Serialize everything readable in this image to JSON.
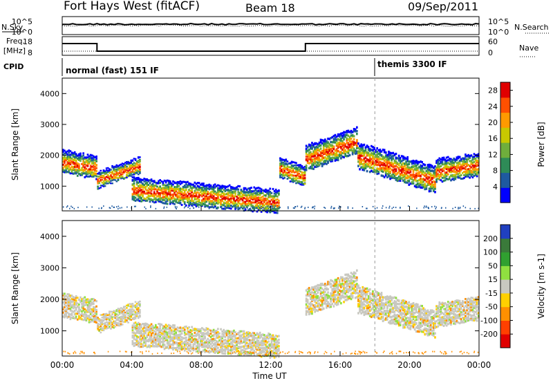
{
  "header": {
    "station": "Fort Hays West (fitACF)",
    "beam": "Beam 18",
    "date": "09/Sep/2011"
  },
  "top_panels": {
    "nsky_label": "N.Sky",
    "nsky_ticks": [
      "10^5",
      "10^0"
    ],
    "nsearch_label": "N.Search",
    "nsearch_ticks": [
      "10^5",
      "10^0"
    ],
    "freq_label_line1": "Freq.",
    "freq_label_line2": "[MHz]",
    "freq_ticks": [
      "18",
      "8"
    ],
    "nave_label": "Nave",
    "nave_ticks": [
      "60",
      "0"
    ],
    "cpid_label": "CPID",
    "cpid_modes": [
      {
        "label": "normal (fast) 151 IF",
        "start": "00:00"
      },
      {
        "label": "themis 3300 IF",
        "start": "18:00"
      }
    ],
    "freq_steps": [
      {
        "from": "00:00",
        "to": "02:00",
        "value": "high"
      },
      {
        "from": "02:00",
        "to": "14:00",
        "value": "low"
      },
      {
        "from": "14:00",
        "to": "24:00",
        "value": "high"
      }
    ]
  },
  "chart_data": [
    {
      "type": "heatmap",
      "title": "",
      "ylabel": "Slant Range [km]",
      "ylim": [
        200,
        4500
      ],
      "yticks": [
        "1000",
        "2000",
        "3000",
        "4000"
      ],
      "xlim": [
        "00:00",
        "24:00"
      ],
      "colorbar": {
        "label": "Power [dB]",
        "ticks": [
          "4",
          "8",
          "12",
          "16",
          "20",
          "24",
          "28"
        ],
        "range": [
          0,
          30
        ],
        "colors": [
          "#0000ff",
          "#1e5aa0",
          "#2e8b57",
          "#6fae3c",
          "#c8c800",
          "#ff9a00",
          "#ff5000",
          "#e00000"
        ]
      },
      "scatter_bands": [
        {
          "from_hour": 0.0,
          "to_hour": 2.0,
          "range_start_km": 1800,
          "range_end_km": 1600,
          "thickness_km": 700
        },
        {
          "from_hour": 2.0,
          "to_hour": 4.5,
          "range_start_km": 1200,
          "range_end_km": 1700,
          "thickness_km": 500
        },
        {
          "from_hour": 4.0,
          "to_hour": 12.5,
          "range_start_km": 900,
          "range_end_km": 500,
          "thickness_km": 700
        },
        {
          "from_hour": 12.5,
          "to_hour": 14.0,
          "range_start_km": 1600,
          "range_end_km": 1300,
          "thickness_km": 600
        },
        {
          "from_hour": 14.0,
          "to_hour": 17.0,
          "range_start_km": 1900,
          "range_end_km": 2500,
          "thickness_km": 800
        },
        {
          "from_hour": 17.0,
          "to_hour": 21.5,
          "range_start_km": 2000,
          "range_end_km": 1200,
          "thickness_km": 800
        },
        {
          "from_hour": 21.5,
          "to_hour": 24.0,
          "range_start_km": 1500,
          "range_end_km": 1700,
          "thickness_km": 700
        }
      ]
    },
    {
      "type": "heatmap",
      "title": "",
      "ylabel": "Slant Range [km]",
      "ylim": [
        200,
        4500
      ],
      "yticks": [
        "1000",
        "2000",
        "3000",
        "4000"
      ],
      "xlabel": "Time UT",
      "xticks": [
        "00:00",
        "04:00",
        "08:00",
        "12:00",
        "16:00",
        "20:00",
        "00:00"
      ],
      "xlim": [
        "00:00",
        "24:00"
      ],
      "colorbar": {
        "label": "Velocity [m s-1]",
        "ticks": [
          "200",
          "100",
          "50",
          "15",
          "-15",
          "-50",
          "-100",
          "-200"
        ],
        "range": [
          -250,
          250
        ],
        "colors": [
          "#2040c0",
          "#3a7a3a",
          "#30a030",
          "#90e040",
          "#c8c8c0",
          "#ffd000",
          "#ff9000",
          "#ff4000",
          "#e00000"
        ]
      },
      "scatter_bands": [
        {
          "from_hour": 0.0,
          "to_hour": 2.0,
          "range_start_km": 1800,
          "range_end_km": 1600,
          "thickness_km": 700,
          "dominant": "ground"
        },
        {
          "from_hour": 2.0,
          "to_hour": 4.5,
          "range_start_km": 1200,
          "range_end_km": 1700,
          "thickness_km": 500,
          "dominant": "ground"
        },
        {
          "from_hour": 4.0,
          "to_hour": 12.5,
          "range_start_km": 900,
          "range_end_km": 500,
          "thickness_km": 700,
          "dominant": "ground"
        },
        {
          "from_hour": 14.0,
          "to_hour": 17.0,
          "range_start_km": 1900,
          "range_end_km": 2500,
          "thickness_km": 800,
          "dominant": "ground"
        },
        {
          "from_hour": 17.0,
          "to_hour": 21.5,
          "range_start_km": 2000,
          "range_end_km": 1200,
          "thickness_km": 800,
          "dominant": "ground"
        },
        {
          "from_hour": 21.5,
          "to_hour": 24.0,
          "range_start_km": 1500,
          "range_end_km": 1700,
          "thickness_km": 700,
          "dominant": "ground"
        }
      ]
    }
  ]
}
